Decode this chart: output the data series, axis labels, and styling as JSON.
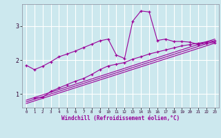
{
  "xlabel": "Windchill (Refroidissement éolien,°C)",
  "bg_color": "#cce8ee",
  "grid_color": "#ffffff",
  "line_color": "#990099",
  "x_ticks": [
    0,
    1,
    2,
    3,
    4,
    5,
    6,
    7,
    8,
    9,
    10,
    11,
    12,
    13,
    14,
    15,
    16,
    17,
    18,
    19,
    20,
    21,
    22,
    23
  ],
  "y_ticks": [
    1,
    2,
    3
  ],
  "xlim": [
    -0.5,
    23.5
  ],
  "ylim": [
    0.6,
    3.65
  ],
  "series1_x": [
    0,
    1,
    2,
    3,
    4,
    5,
    6,
    7,
    8,
    9,
    10,
    11,
    12,
    13,
    14,
    15,
    16,
    17,
    18,
    19,
    20,
    21,
    22,
    23
  ],
  "series1_y": [
    1.85,
    1.72,
    1.82,
    1.95,
    2.1,
    2.18,
    2.27,
    2.37,
    2.47,
    2.57,
    2.62,
    2.15,
    2.05,
    3.15,
    3.45,
    3.42,
    2.58,
    2.62,
    2.55,
    2.55,
    2.53,
    2.46,
    2.5,
    2.52
  ],
  "series2_x": [
    1,
    2,
    3,
    4,
    5,
    6,
    7,
    8,
    9,
    10,
    11,
    12,
    13,
    14,
    15,
    16,
    17,
    18,
    19,
    20,
    21,
    22,
    23
  ],
  "series2_y": [
    0.88,
    0.9,
    1.08,
    1.18,
    1.28,
    1.38,
    1.46,
    1.58,
    1.72,
    1.83,
    1.88,
    1.93,
    2.03,
    2.1,
    2.18,
    2.24,
    2.3,
    2.36,
    2.42,
    2.46,
    2.5,
    2.54,
    2.57
  ],
  "line3_x": [
    0,
    23
  ],
  "line3_y": [
    0.72,
    2.5
  ],
  "line4_x": [
    0,
    23
  ],
  "line4_y": [
    0.77,
    2.56
  ],
  "line5_x": [
    0,
    23
  ],
  "line5_y": [
    0.82,
    2.62
  ]
}
